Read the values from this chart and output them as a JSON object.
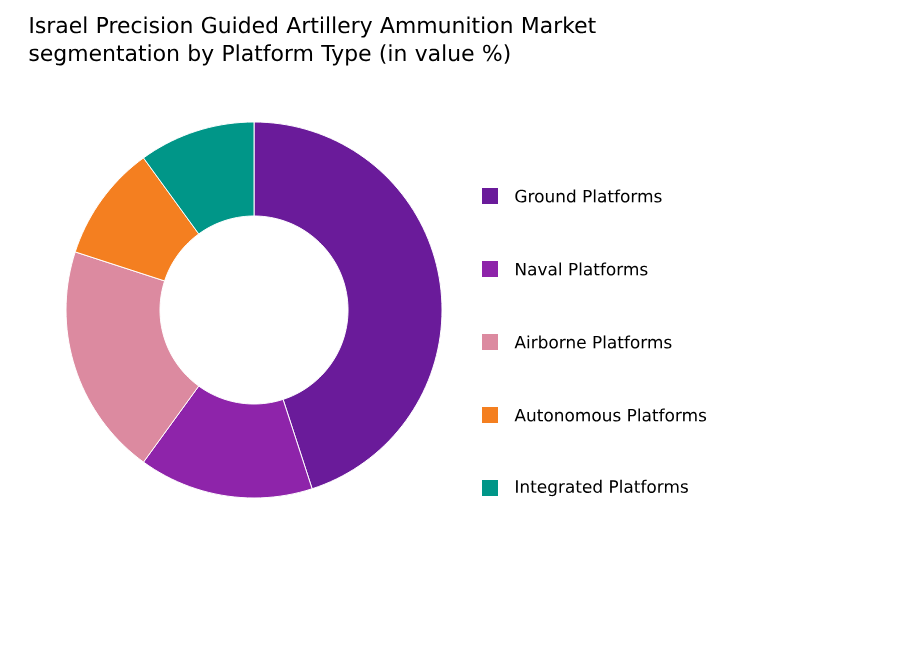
{
  "chart_data": {
    "type": "donut",
    "title": "Israel Precision Guided Artillery Ammunition Market segmentation by Platform Type (in value %)",
    "categories": [
      "Ground Platforms",
      "Naval Platforms",
      "Airborne Platforms",
      "Autonomous Platforms",
      "Integrated Platforms"
    ],
    "values": [
      45,
      15,
      20,
      10,
      10
    ],
    "colors": [
      "#6a1b9a",
      "#8e24aa",
      "#dc8aa0",
      "#f47f20",
      "#009688"
    ],
    "legend": "right"
  }
}
